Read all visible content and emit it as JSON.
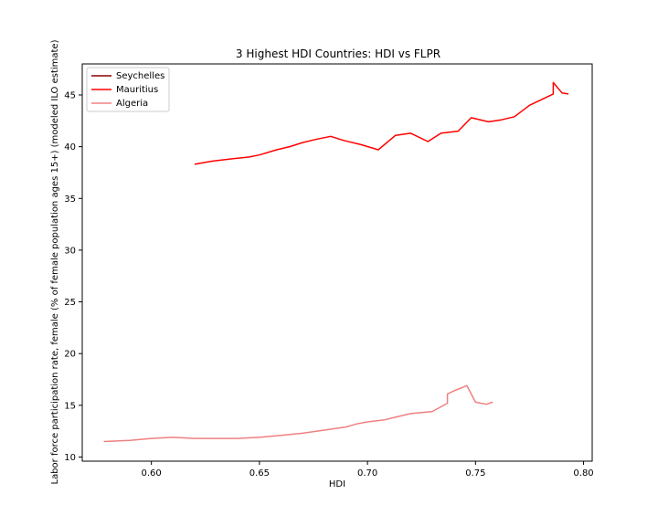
{
  "chart_data": {
    "type": "line",
    "title": "3 Highest HDI Countries: HDI vs FLPR",
    "xlabel": "HDI",
    "ylabel": "Labor force participation rate, female (% of female population ages 15+) (modeled ILO estimate)",
    "xlim": [
      0.568,
      0.804
    ],
    "ylim": [
      9.6,
      48.0
    ],
    "xticks": [
      0.6,
      0.65,
      0.7,
      0.75,
      0.8
    ],
    "xtick_labels": [
      "0.60",
      "0.65",
      "0.70",
      "0.75",
      "0.80"
    ],
    "yticks": [
      10,
      15,
      20,
      25,
      30,
      35,
      40,
      45
    ],
    "ytick_labels": [
      "10",
      "15",
      "20",
      "25",
      "30",
      "35",
      "40",
      "45"
    ],
    "grid": false,
    "legend_position": "top-left",
    "series": [
      {
        "name": "Seychelles",
        "color": "#8b0000",
        "x": [],
        "y": []
      },
      {
        "name": "Mauritius",
        "color": "#ff0000",
        "x": [
          0.62,
          0.628,
          0.636,
          0.645,
          0.65,
          0.658,
          0.664,
          0.67,
          0.676,
          0.683,
          0.689,
          0.697,
          0.705,
          0.713,
          0.72,
          0.728,
          0.734,
          0.742,
          0.748,
          0.756,
          0.762,
          0.768,
          0.775,
          0.786,
          0.786,
          0.79,
          0.793
        ],
        "y": [
          38.3,
          38.6,
          38.8,
          39.0,
          39.2,
          39.7,
          40.0,
          40.4,
          40.7,
          41.0,
          40.6,
          40.2,
          39.7,
          41.1,
          41.3,
          40.5,
          41.3,
          41.5,
          42.8,
          42.4,
          42.6,
          42.9,
          44.0,
          45.1,
          46.2,
          45.2,
          45.1
        ]
      },
      {
        "name": "Algeria",
        "color": "#f08080",
        "x": [
          0.578,
          0.59,
          0.6,
          0.61,
          0.62,
          0.63,
          0.64,
          0.65,
          0.66,
          0.67,
          0.68,
          0.69,
          0.695,
          0.7,
          0.708,
          0.712,
          0.72,
          0.73,
          0.737,
          0.737,
          0.74,
          0.746,
          0.75,
          0.755,
          0.758
        ],
        "y": [
          11.5,
          11.6,
          11.8,
          11.9,
          11.8,
          11.8,
          11.8,
          11.9,
          12.1,
          12.3,
          12.6,
          12.9,
          13.2,
          13.4,
          13.6,
          13.8,
          14.2,
          14.4,
          15.2,
          16.1,
          16.4,
          16.9,
          15.3,
          15.1,
          15.3
        ]
      }
    ]
  }
}
